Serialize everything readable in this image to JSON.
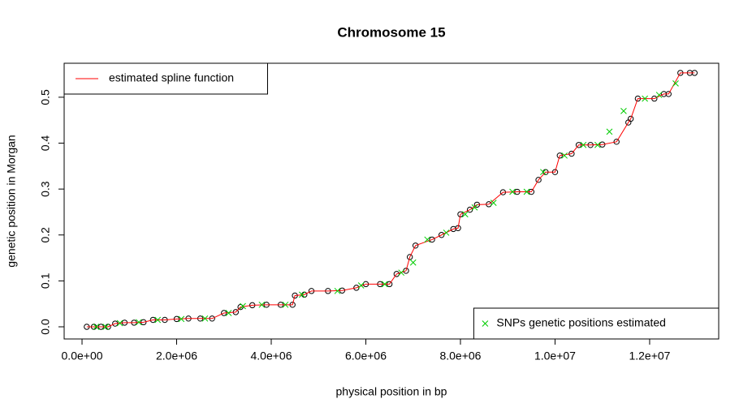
{
  "chart_data": {
    "type": "line",
    "title": "Chromosome 15",
    "x_label": "physical position in bp",
    "y_label": "genetic position in Morgan",
    "x": [
      100000,
      250000,
      400000,
      550000,
      700000,
      900000,
      1100000,
      1300000,
      1500000,
      1750000,
      2000000,
      2250000,
      2500000,
      2750000,
      3000000,
      3250000,
      3350000,
      3600000,
      3900000,
      4200000,
      4450000,
      4500000,
      4700000,
      4850000,
      5200000,
      5500000,
      5800000,
      6000000,
      6300000,
      6500000,
      6650000,
      6850000,
      6930000,
      7050000,
      7400000,
      7600000,
      7850000,
      7950000,
      8000000,
      8200000,
      8350000,
      8600000,
      8900000,
      9200000,
      9500000,
      9650000,
      9800000,
      10000000,
      10100000,
      10350000,
      10500000,
      10750000,
      11000000,
      11300000,
      11550000,
      11600000,
      11750000,
      12100000,
      12300000,
      12400000,
      12650000,
      12850000,
      12950000
    ],
    "series": [
      {
        "name": "estimated spline function",
        "color": "#ff0000",
        "marker_color": "#000000",
        "marker": "circle",
        "legend": "top-left",
        "values": [
          0.0,
          0.0,
          0.0,
          0.0,
          0.007,
          0.009,
          0.009,
          0.01,
          0.015,
          0.015,
          0.017,
          0.018,
          0.018,
          0.018,
          0.03,
          0.032,
          0.043,
          0.047,
          0.048,
          0.048,
          0.048,
          0.068,
          0.07,
          0.078,
          0.078,
          0.079,
          0.085,
          0.093,
          0.093,
          0.093,
          0.115,
          0.122,
          0.152,
          0.177,
          0.19,
          0.2,
          0.213,
          0.215,
          0.245,
          0.255,
          0.266,
          0.267,
          0.293,
          0.294,
          0.294,
          0.32,
          0.337,
          0.337,
          0.373,
          0.377,
          0.396,
          0.396,
          0.397,
          0.403,
          0.445,
          0.453,
          0.497,
          0.497,
          0.507,
          0.507,
          0.553,
          0.553,
          0.553
        ]
      },
      {
        "name": "SNPs genetic positions estimated",
        "color": "#00cc00",
        "marker": "cross",
        "legend": "bottom-right",
        "x": [
          300000,
          500000,
          800000,
          1200000,
          1600000,
          2100000,
          2600000,
          3100000,
          3400000,
          3800000,
          4300000,
          4650000,
          5400000,
          5900000,
          6400000,
          6750000,
          7000000,
          7300000,
          7700000,
          8100000,
          8300000,
          8700000,
          9100000,
          9400000,
          9750000,
          10200000,
          10600000,
          10900000,
          11150000,
          11450000,
          11900000,
          12200000,
          12550000
        ],
        "values": [
          0.0,
          0.0,
          0.008,
          0.01,
          0.015,
          0.017,
          0.018,
          0.03,
          0.045,
          0.048,
          0.048,
          0.07,
          0.078,
          0.09,
          0.093,
          0.118,
          0.14,
          0.19,
          0.205,
          0.245,
          0.26,
          0.27,
          0.294,
          0.294,
          0.337,
          0.373,
          0.396,
          0.396,
          0.425,
          0.47,
          0.497,
          0.505,
          0.53
        ]
      }
    ],
    "xlim": [
      -378000,
      13460000
    ],
    "ylim": [
      -0.0265,
      0.574
    ],
    "xticks": [
      {
        "value": 0,
        "label": "0.0e+00"
      },
      {
        "value": 2000000,
        "label": "2.0e+06"
      },
      {
        "value": 4000000,
        "label": "4.0e+06"
      },
      {
        "value": 6000000,
        "label": "6.0e+06"
      },
      {
        "value": 8000000,
        "label": "8.0e+06"
      },
      {
        "value": 10000000,
        "label": "1.0e+07"
      },
      {
        "value": 12000000,
        "label": "1.2e+07"
      }
    ],
    "yticks": [
      {
        "value": 0,
        "label": "0.0"
      },
      0.1,
      0.2,
      0.3,
      0.4,
      0.5
    ]
  }
}
